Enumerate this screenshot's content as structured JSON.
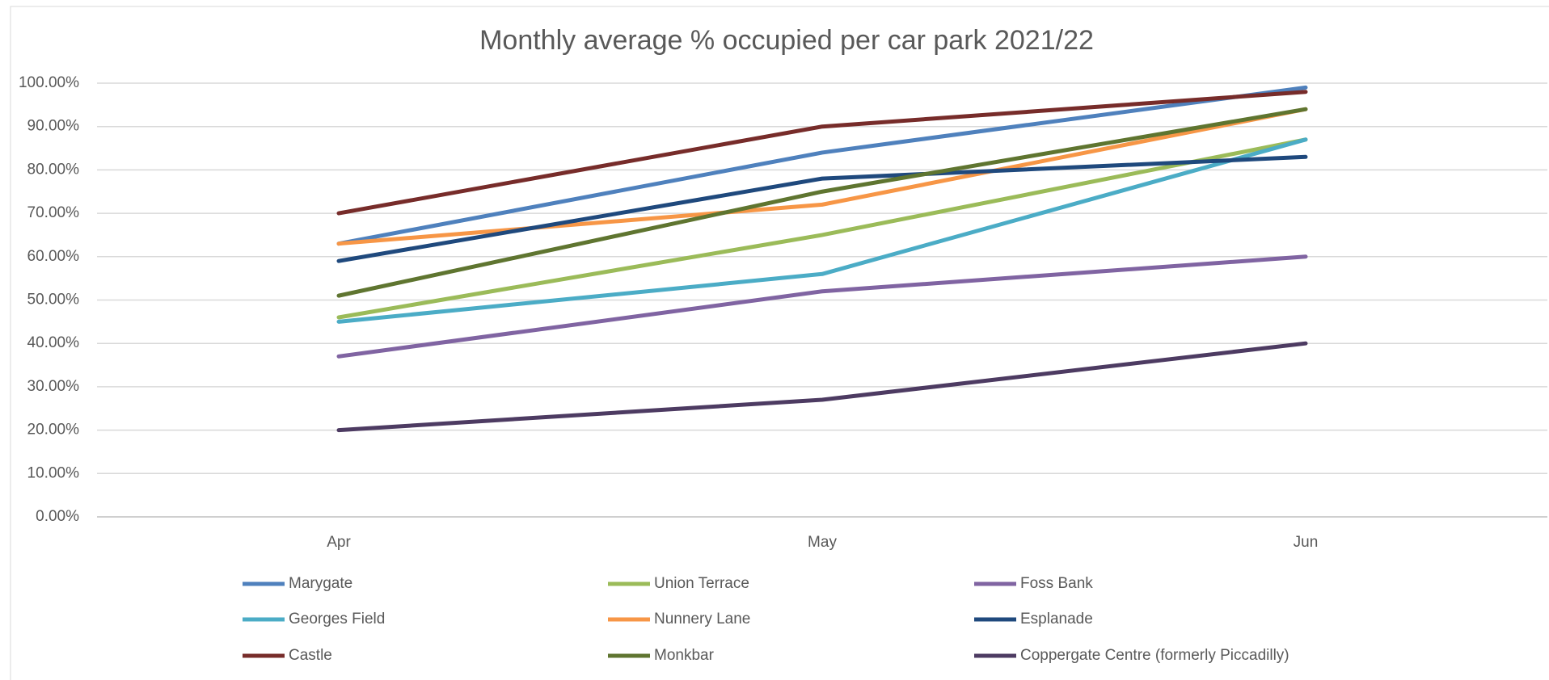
{
  "chart_data": {
    "type": "line",
    "title": "Monthly average % occupied per car park 2021/22",
    "categories": [
      "Apr",
      "May",
      "Jun"
    ],
    "series": [
      {
        "name": "Marygate",
        "color": "#4f81bd",
        "values": [
          63,
          84,
          99
        ]
      },
      {
        "name": "Union Terrace",
        "color": "#9bbb59",
        "values": [
          46,
          65,
          87
        ]
      },
      {
        "name": "Foss Bank",
        "color": "#8064a2",
        "values": [
          37,
          52,
          60
        ]
      },
      {
        "name": "Georges Field",
        "color": "#4bacc6",
        "values": [
          45,
          56,
          87
        ]
      },
      {
        "name": "Nunnery Lane",
        "color": "#f79646",
        "values": [
          63,
          72,
          94
        ]
      },
      {
        "name": "Esplanade",
        "color": "#1f497d",
        "values": [
          59,
          78,
          83
        ]
      },
      {
        "name": "Castle",
        "color": "#772c2a",
        "values": [
          70,
          90,
          98
        ]
      },
      {
        "name": "Monkbar",
        "color": "#5f7530",
        "values": [
          51,
          75,
          94
        ]
      },
      {
        "name": "Coppergate Centre (formerly  Piccadilly)",
        "color": "#4d3b62",
        "values": [
          20,
          27,
          40
        ]
      }
    ],
    "ylim": [
      0,
      100
    ],
    "yticks": [
      {
        "value": 0,
        "label": "0.00%"
      },
      {
        "value": 10,
        "label": "10.00%"
      },
      {
        "value": 20,
        "label": "20.00%"
      },
      {
        "value": 30,
        "label": "30.00%"
      },
      {
        "value": 40,
        "label": "40.00%"
      },
      {
        "value": 50,
        "label": "50.00%"
      },
      {
        "value": 60,
        "label": "60.00%"
      },
      {
        "value": 70,
        "label": "70.00%"
      },
      {
        "value": 80,
        "label": "80.00%"
      },
      {
        "value": 90,
        "label": "90.00%"
      },
      {
        "value": 100,
        "label": "100.00%"
      }
    ],
    "grid": true,
    "legend": "bottom"
  }
}
